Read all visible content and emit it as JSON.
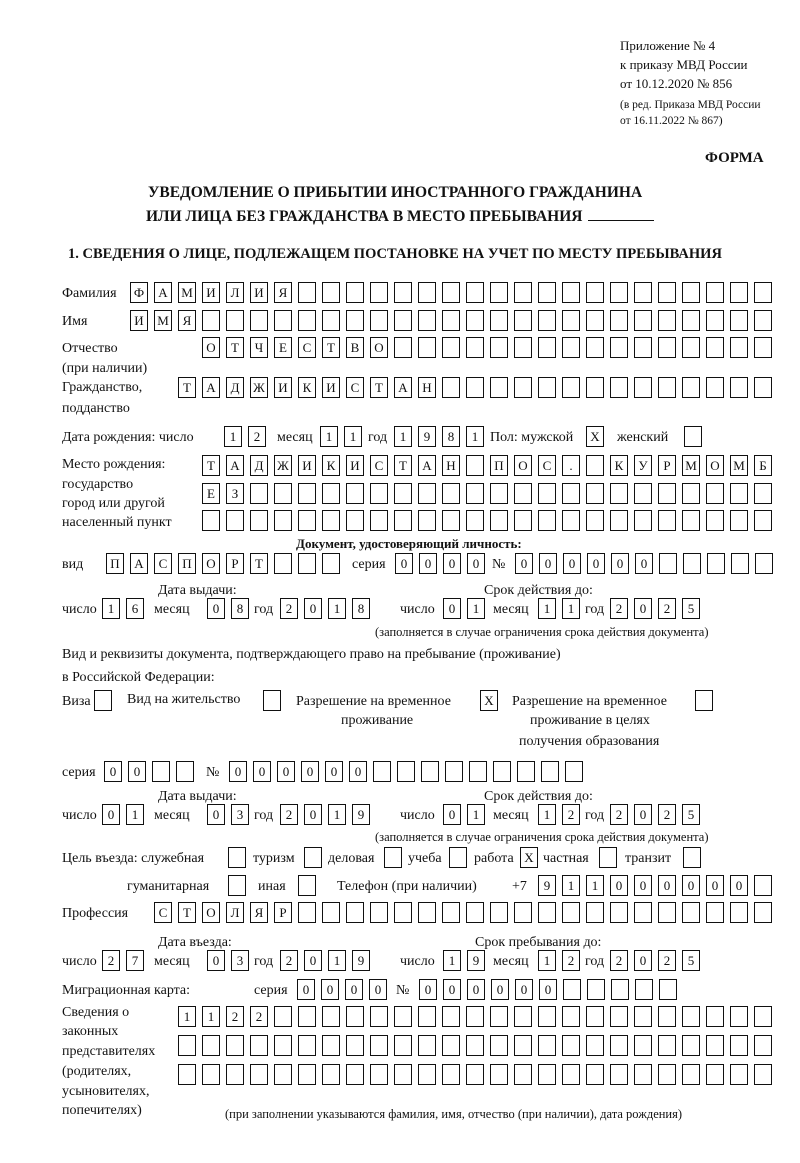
{
  "header": {
    "appendix": "Приложение № 4",
    "order": "к приказу МВД России",
    "order_date": "от 10.12.2020 № 856",
    "revision_1": "(в ред. Приказа МВД России",
    "revision_2": "от 16.11.2022 № 867)",
    "form_label": "ФОРМА",
    "title_1": "УВЕДОМЛЕНИЕ О ПРИБЫТИИ ИНОСТРАННОГО ГРАЖДАНИНА",
    "title_2": "ИЛИ ЛИЦА БЕЗ ГРАЖДАНСТВА В МЕСТО ПРЕБЫВАНИЯ",
    "section_1": "1. СВЕДЕНИЯ О ЛИЦЕ, ПОДЛЕЖАЩЕМ ПОСТАНОВКЕ НА УЧЕТ ПО МЕСТУ ПРЕБЫВАНИЯ"
  },
  "labels": {
    "surname": "Фамилия",
    "name": "Имя",
    "patronymic": "Отчество",
    "patronymic_note": "(при наличии)",
    "citizenship": "Гражданство,",
    "citizenship_2": "подданство",
    "birth_date": "Дата рождения:  число",
    "month": "месяц",
    "year": "год",
    "day": "число",
    "sex_male": "Пол: мужской",
    "sex_female": "женский",
    "birthplace_1": "Место рождения:",
    "birthplace_2": "государство",
    "birthplace_3": "город или другой",
    "birthplace_4": "населенный пункт",
    "id_doc": "Документ, удостоверяющий личность:",
    "kind": "вид",
    "series": "серия",
    "number": "№",
    "issue_date": "Дата выдачи:",
    "valid_until": "Срок действия до:",
    "valid_note": "(заполняется в случае ограничения срока действия документа)",
    "stay_doc_1": "Вид и реквизиты документа, подтверждающего право на пребывание (проживание)",
    "stay_doc_2": "в Российской Федерации:",
    "visa": "Виза",
    "residence_permit": "Вид на жительство",
    "temp_residence_1": "Разрешение на временное",
    "temp_residence_2": "проживание",
    "temp_edu_1": "Разрешение на временное",
    "temp_edu_2": "проживание в целях",
    "temp_edu_3": "получения образования",
    "purpose": "Цель въезда: служебная",
    "tourism": "туризм",
    "business": "деловая",
    "study": "учеба",
    "work": "работа",
    "private": "частная",
    "transit": "транзит",
    "humanitarian": "гуманитарная",
    "other": "иная",
    "phone": "Телефон (при наличии)",
    "phone_prefix": "+7",
    "profession": "Профессия",
    "entry_date": "Дата въезда:",
    "stay_until": "Срок пребывания до:",
    "migration_card": "Миграционная карта:",
    "reps_1": "Сведения о",
    "reps_2": "законных",
    "reps_3": "представителях",
    "reps_4": "(родителях,",
    "reps_5": "усыновителях,",
    "reps_6": "попечителях)",
    "reps_note": "(при заполнении указываются фамилия, имя, отчество (при наличии), дата рождения)"
  },
  "values": {
    "surname": "ФАМИЛИЯ",
    "name": "ИМЯ",
    "patronymic": "ОТЧЕСТВО",
    "citizenship": "ТАДЖИКИСТАН",
    "birth_day": "12",
    "birth_month": "11",
    "birth_year": "1981",
    "sex_male": "X",
    "sex_female": "",
    "birthplace_1": "ТАДЖИКИСТАН ПОС. КУРМОМБ",
    "birthplace_2": "ЕЗ",
    "birthplace_3": "",
    "id_kind": "ПАСПОРТ",
    "id_series": "0000",
    "id_number": "000000",
    "id_issue_day": "16",
    "id_issue_month": "08",
    "id_issue_year": "2018",
    "id_valid_day": "01",
    "id_valid_month": "11",
    "id_valid_year": "2025",
    "visa": "",
    "residence_permit": "",
    "temp_residence": "X",
    "temp_edu": "",
    "stay_series": "00",
    "stay_number": "000000",
    "stay_issue_day": "01",
    "stay_issue_month": "03",
    "stay_issue_year": "2019",
    "stay_valid_day": "01",
    "stay_valid_month": "12",
    "stay_valid_year": "2025",
    "purpose_official": "",
    "purpose_tourism": "",
    "purpose_business": "",
    "purpose_study": "",
    "purpose_work": "X",
    "purpose_private": "",
    "purpose_transit": "",
    "purpose_humanitarian": "",
    "purpose_other": "",
    "phone": "911000000",
    "profession": "СТОЛЯР",
    "entry_day": "27",
    "entry_month": "03",
    "entry_year": "2019",
    "stay_until_day": "19",
    "stay_until_month": "12",
    "stay_until_year": "2025",
    "mig_series": "0000",
    "mig_number": "000000",
    "reps_1": "1122",
    "reps_2": "",
    "reps_3": ""
  }
}
